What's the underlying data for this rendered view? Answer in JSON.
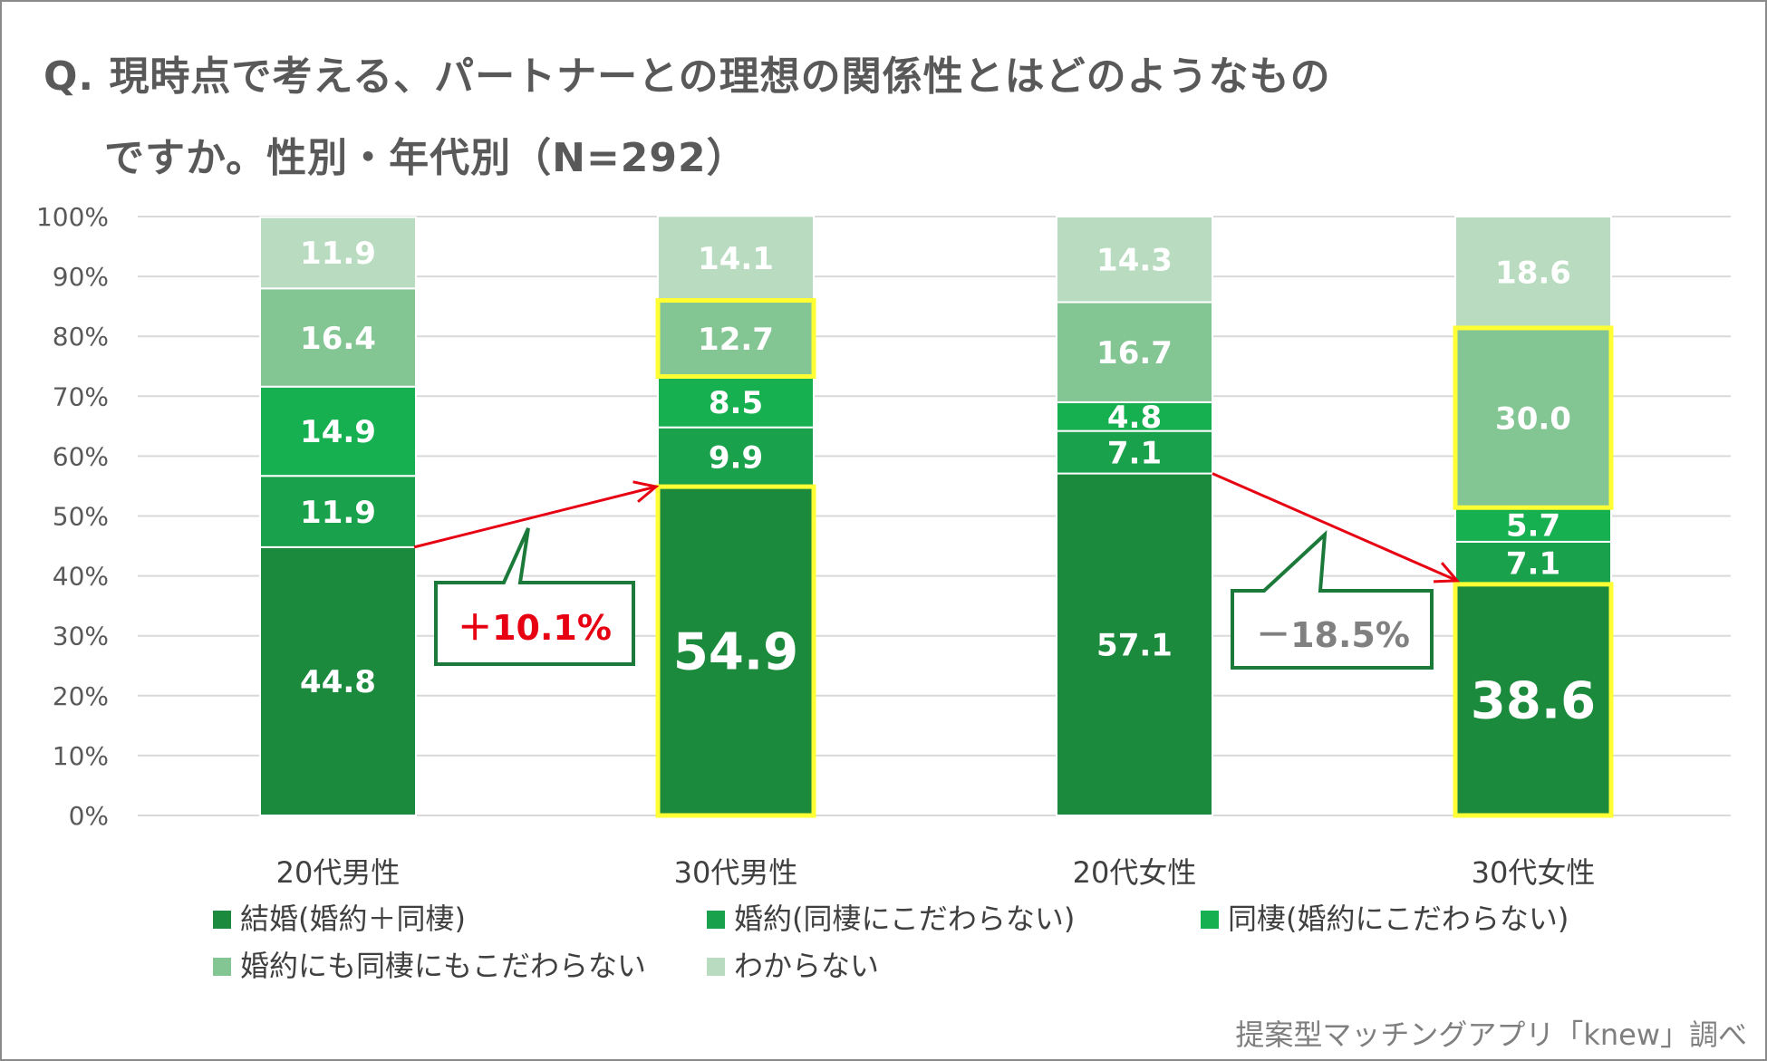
{
  "title_line1": "Q. 現時点で考える、パートナーとの理想の関係性とはどのようなもの",
  "title_line2": "ですか。性別・年代別（N=292）",
  "source": "提案型マッチングアプリ「knew」調べ",
  "chart_data": {
    "type": "bar",
    "stacked": true,
    "categories": [
      "20代男性",
      "30代男性",
      "20代女性",
      "30代女性"
    ],
    "yticks": [
      "0%",
      "10%",
      "20%",
      "30%",
      "40%",
      "50%",
      "60%",
      "70%",
      "80%",
      "90%",
      "100%"
    ],
    "ylim": [
      0,
      100
    ],
    "series": [
      {
        "name": "結婚(婚約＋同棲)",
        "color": "#1b8a3d",
        "values": [
          44.8,
          54.9,
          57.1,
          38.6
        ]
      },
      {
        "name": "婚約(同棲にこだわらない)",
        "color": "#19a14b",
        "values": [
          11.9,
          9.9,
          7.1,
          7.1
        ]
      },
      {
        "name": "同棲(婚約にこだわらない)",
        "color": "#16b051",
        "values": [
          14.9,
          8.5,
          4.8,
          5.7
        ]
      },
      {
        "name": "婚約にも同棲にもこだわらない",
        "color": "#84c594",
        "values": [
          16.4,
          12.7,
          16.7,
          30.0
        ]
      },
      {
        "name": "わからない",
        "color": "#b9dcc0",
        "values": [
          11.9,
          14.1,
          14.3,
          18.6
        ]
      }
    ],
    "labels": [
      [
        "44.8",
        "54.9",
        "57.1",
        "38.6"
      ],
      [
        "11.9",
        "9.9",
        "7.1",
        "7.1"
      ],
      [
        "14.9",
        "8.5",
        "4.8",
        "5.7"
      ],
      [
        "16.4",
        "12.7",
        "16.7",
        "30.0"
      ],
      [
        "11.9",
        "14.1",
        "14.3",
        "18.6"
      ]
    ],
    "highlights": [
      {
        "category": 1,
        "series": 0
      },
      {
        "category": 1,
        "series": 3
      },
      {
        "category": 3,
        "series": 0
      },
      {
        "category": 3,
        "series": 3
      }
    ],
    "emphasized_labels": [
      {
        "category": 1,
        "series": 0
      },
      {
        "category": 3,
        "series": 0
      }
    ],
    "annotations": [
      {
        "text": "＋10.1%",
        "color": "#e60012",
        "from_category": 0,
        "to_category": 1
      },
      {
        "text": "－18.5%",
        "color": "#808080",
        "from_category": 2,
        "to_category": 3
      }
    ],
    "legend_position": "bottom"
  },
  "colors": {
    "arrow": "#e60012",
    "callout_border": "#1b7a3a",
    "highlight": "#ffff33",
    "grid": "#d9d9d9",
    "axis_text": "#595959"
  }
}
